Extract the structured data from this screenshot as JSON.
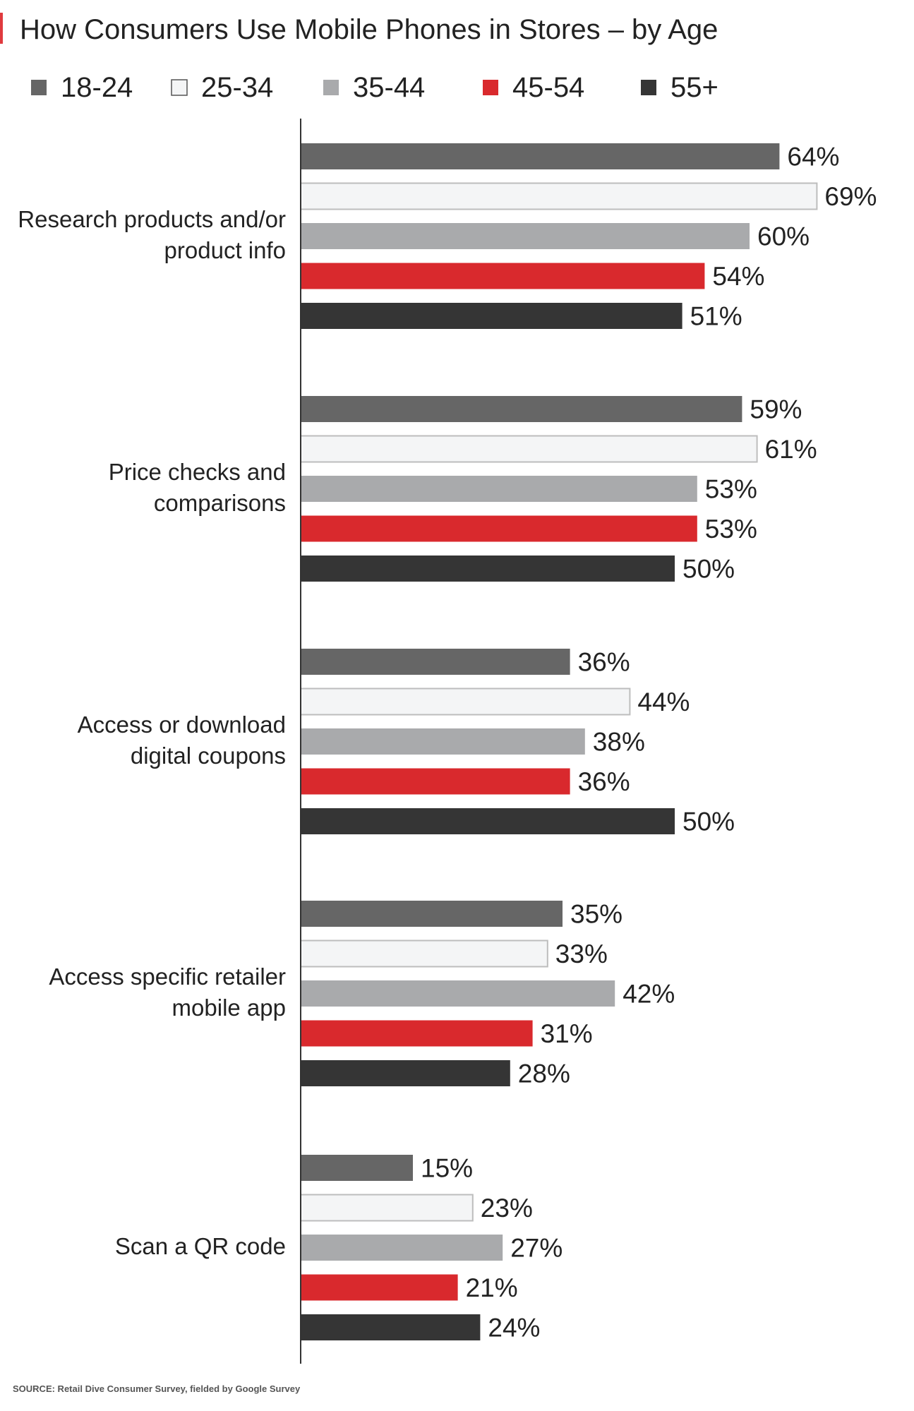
{
  "colors": {
    "accent": "#e03a3e",
    "series": [
      "#666666",
      "#f4f5f6",
      "#a9aaac",
      "#d9292d",
      "#353535"
    ],
    "bar_outline": "#bdbdbd",
    "axis": "#333333"
  },
  "chart_data": {
    "type": "bar",
    "orientation": "horizontal",
    "title": "How Consumers Use Mobile Phones in Stores – by Age",
    "xlabel": "",
    "ylabel": "",
    "xlim": [
      0,
      100
    ],
    "grid": false,
    "legend_position": "top",
    "value_suffix": "%",
    "categories": [
      [
        "Research products and/or",
        "product info"
      ],
      [
        "Price checks and",
        "comparisons"
      ],
      [
        "Access or download",
        "digital coupons"
      ],
      [
        "Access specific retailer",
        "mobile app"
      ],
      [
        "Scan a QR code"
      ]
    ],
    "series": [
      {
        "name": "18-24",
        "values": [
          64,
          59,
          36,
          35,
          15
        ]
      },
      {
        "name": "25-34",
        "values": [
          69,
          61,
          44,
          33,
          23
        ]
      },
      {
        "name": "35-44",
        "values": [
          60,
          53,
          38,
          42,
          27
        ]
      },
      {
        "name": "45-54",
        "values": [
          54,
          53,
          36,
          31,
          21
        ]
      },
      {
        "name": "55+",
        "values": [
          51,
          50,
          50,
          28,
          24
        ]
      }
    ]
  },
  "source": "SOURCE: Retail Dive Consumer Survey, fielded by Google Survey"
}
